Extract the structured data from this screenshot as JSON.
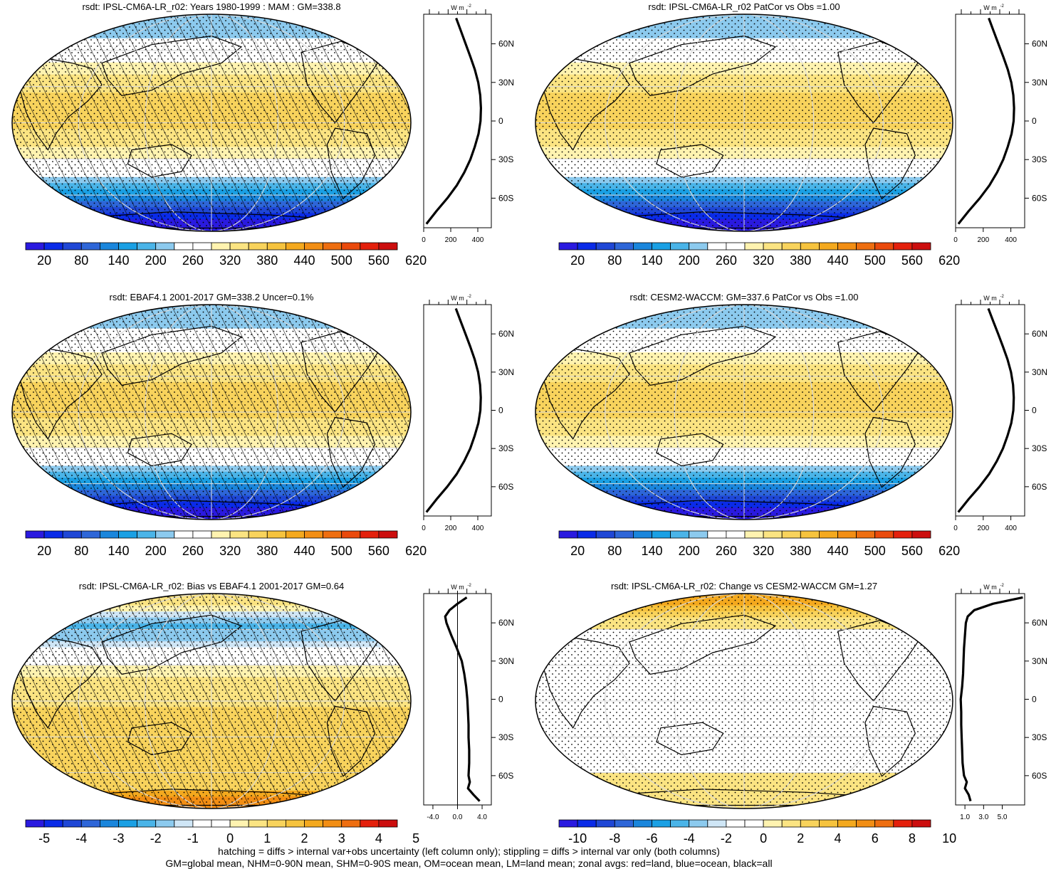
{
  "figure": {
    "footnote_line1": "hatching = diffs > internal var+obs uncertainty (left column only); stippling = diffs > internal var only (both columns)",
    "footnote_line2": "GM=global mean, NHM=0-90N mean, SHM=0-90S mean, OM=ocean mean, LM=land mean; zonal avgs: red=land, blue=ocean, black=all"
  },
  "palette": {
    "full": [
      "#2a1ae0",
      "#0a2be8",
      "#1f47d6",
      "#2e66d8",
      "#1a86dc",
      "#1aa0e4",
      "#4ab4e8",
      "#8ccaee",
      "#ffffff",
      "#ffffff",
      "#fff3b0",
      "#fbe482",
      "#f8d35c",
      "#f6c33e",
      "#f4a91e",
      "#f28e14",
      "#ee6e10",
      "#ea4a0c",
      "#e4200c",
      "#cc0e0e"
    ],
    "diff": [
      "#2a1ae0",
      "#0a2be8",
      "#1f47d6",
      "#2e66d8",
      "#1a86dc",
      "#1aa0e4",
      "#4ab4e8",
      "#8ccaee",
      "#cfe6f6",
      "#ffffff",
      "#ffffff",
      "#fff3b0",
      "#fbe482",
      "#f8d35c",
      "#f6c33e",
      "#f4a91e",
      "#f28e14",
      "#ee6e10",
      "#e4200c",
      "#cc0e0e"
    ]
  },
  "chart_data": [
    {
      "type": "heatmap",
      "panel": "model-climatology",
      "title": "rsdt: IPSL-CM6A-LR_r02: Years 1980-1999 : MAM : GM=338.8",
      "pattern": "hatch",
      "colorbar": {
        "ticks": [
          "20",
          "80",
          "140",
          "200",
          "260",
          "320",
          "380",
          "440",
          "500",
          "560",
          "620"
        ],
        "min": -10,
        "max": 670,
        "palette": "full"
      },
      "zonal_profile": {
        "unit": "W m",
        "xticks": [
          "0",
          "200",
          "400"
        ],
        "xlim": [
          0,
          500
        ],
        "yticks": [
          "60N",
          "30N",
          "0",
          "30S",
          "60S"
        ],
        "lat": [
          80,
          70,
          60,
          50,
          40,
          30,
          20,
          10,
          0,
          -10,
          -20,
          -30,
          -40,
          -50,
          -60,
          -70,
          -80
        ],
        "values": [
          240,
          275,
          310,
          345,
          378,
          403,
          418,
          423,
          420,
          405,
          378,
          345,
          300,
          245,
          175,
          95,
          20
        ]
      }
    },
    {
      "type": "heatmap",
      "panel": "reference-pattern-correlation",
      "title": "rsdt: IPSL-CM6A-LR_r02 PatCor vs Obs =1.00",
      "pattern": "stipple",
      "colorbar": {
        "ticks": [
          "20",
          "80",
          "140",
          "200",
          "260",
          "320",
          "380",
          "440",
          "500",
          "560",
          "620"
        ],
        "min": -10,
        "max": 670,
        "palette": "full"
      },
      "zonal_profile": {
        "unit": "W m",
        "xticks": [
          "0",
          "200",
          "400"
        ],
        "xlim": [
          0,
          500
        ],
        "yticks": [
          "60N",
          "30N",
          "0",
          "30S",
          "60S"
        ],
        "lat": [
          80,
          70,
          60,
          50,
          40,
          30,
          20,
          10,
          0,
          -10,
          -20,
          -30,
          -40,
          -50,
          -60,
          -70,
          -80
        ],
        "values": [
          240,
          275,
          310,
          345,
          378,
          403,
          418,
          423,
          420,
          405,
          378,
          345,
          300,
          245,
          175,
          95,
          20
        ]
      }
    },
    {
      "type": "heatmap",
      "panel": "observations",
      "title": "rsdt: EBAF4.1 2001-2017 GM=338.2 Uncer=0.1%",
      "pattern": "hatch",
      "colorbar": {
        "ticks": [
          "20",
          "80",
          "140",
          "200",
          "260",
          "320",
          "380",
          "440",
          "500",
          "560",
          "620"
        ],
        "min": -10,
        "max": 670,
        "palette": "full"
      },
      "zonal_profile": {
        "unit": "W m",
        "xticks": [
          "0",
          "200",
          "400"
        ],
        "xlim": [
          0,
          500
        ],
        "yticks": [
          "60N",
          "30N",
          "0",
          "30S",
          "60S"
        ],
        "lat": [
          80,
          70,
          60,
          50,
          40,
          30,
          20,
          10,
          0,
          -10,
          -20,
          -30,
          -40,
          -50,
          -60,
          -70,
          -80
        ],
        "values": [
          238,
          273,
          309,
          344,
          377,
          402,
          417,
          422,
          419,
          404,
          377,
          344,
          299,
          244,
          174,
          94,
          20
        ]
      }
    },
    {
      "type": "heatmap",
      "panel": "reference-model",
      "title": "rsdt: CESM2-WACCM: GM=337.6 PatCor vs Obs =1.00",
      "pattern": "stipple",
      "colorbar": {
        "ticks": [
          "20",
          "80",
          "140",
          "200",
          "260",
          "320",
          "380",
          "440",
          "500",
          "560",
          "620"
        ],
        "min": -10,
        "max": 670,
        "palette": "full"
      },
      "zonal_profile": {
        "unit": "W m",
        "xticks": [
          "0",
          "200",
          "400"
        ],
        "xlim": [
          0,
          500
        ],
        "yticks": [
          "60N",
          "30N",
          "0",
          "30S",
          "60S"
        ],
        "lat": [
          80,
          70,
          60,
          50,
          40,
          30,
          20,
          10,
          0,
          -10,
          -20,
          -30,
          -40,
          -50,
          -60,
          -70,
          -80
        ],
        "values": [
          237,
          272,
          308,
          343,
          376,
          401,
          416,
          421,
          418,
          403,
          376,
          343,
          298,
          243,
          173,
          93,
          19
        ]
      }
    },
    {
      "type": "heatmap",
      "panel": "bias",
      "title": "rsdt: IPSL-CM6A-LR_r02: Bias vs EBAF4.1 2001-2017 GM=0.64",
      "pattern": "hatch",
      "colorbar": {
        "ticks": [
          "-5",
          "-4",
          "-3",
          "-2",
          "-1",
          "0",
          "1",
          "2",
          "3",
          "4",
          "5"
        ],
        "min": -5.5,
        "max": 5.5,
        "palette": "diff"
      },
      "zonal_profile": {
        "unit": "W m",
        "xticks": [
          "-4.0",
          "0.0",
          "4.0"
        ],
        "xlim": [
          -5.5,
          5.5
        ],
        "yticks": [
          "60N",
          "30N",
          "0",
          "30S",
          "60S"
        ],
        "zero_line": 0,
        "lat": [
          80,
          75,
          70,
          65,
          60,
          50,
          40,
          30,
          20,
          10,
          0,
          -10,
          -20,
          -30,
          -40,
          -50,
          -60,
          -65,
          -70,
          -75,
          -80
        ],
        "values": [
          1.5,
          0.0,
          -1.3,
          -2.0,
          -1.8,
          -1.0,
          -0.1,
          0.7,
          1.1,
          1.4,
          1.6,
          1.7,
          1.8,
          1.8,
          1.9,
          1.9,
          1.8,
          2.0,
          1.7,
          2.6,
          3.6
        ]
      }
    },
    {
      "type": "heatmap",
      "panel": "change",
      "title": "rsdt: IPSL-CM6A-LR_r02: Change vs CESM2-WACCM GM=1.27",
      "pattern": "stipple",
      "colorbar": {
        "ticks": [
          "-10",
          "-8",
          "-6",
          "-4",
          "-2",
          "0",
          "2",
          "4",
          "6",
          "8",
          "10"
        ],
        "min": -11,
        "max": 11,
        "palette": "diff"
      },
      "zonal_profile": {
        "unit": "W m",
        "xticks": [
          "1.0",
          "3.0",
          "5.0"
        ],
        "xlim": [
          0.0,
          7.4
        ],
        "yticks": [
          "60N",
          "30N",
          "0",
          "30S",
          "60S"
        ],
        "lat": [
          80,
          75,
          70,
          65,
          60,
          50,
          40,
          30,
          20,
          10,
          0,
          -10,
          -20,
          -30,
          -40,
          -50,
          -60,
          -65,
          -70,
          -75,
          -80
        ],
        "values": [
          7.2,
          4.0,
          2.0,
          1.3,
          1.1,
          1.0,
          0.9,
          0.85,
          0.8,
          0.7,
          0.55,
          0.6,
          0.6,
          0.65,
          0.7,
          0.75,
          0.9,
          1.2,
          1.0,
          1.4,
          1.6
        ]
      }
    }
  ]
}
